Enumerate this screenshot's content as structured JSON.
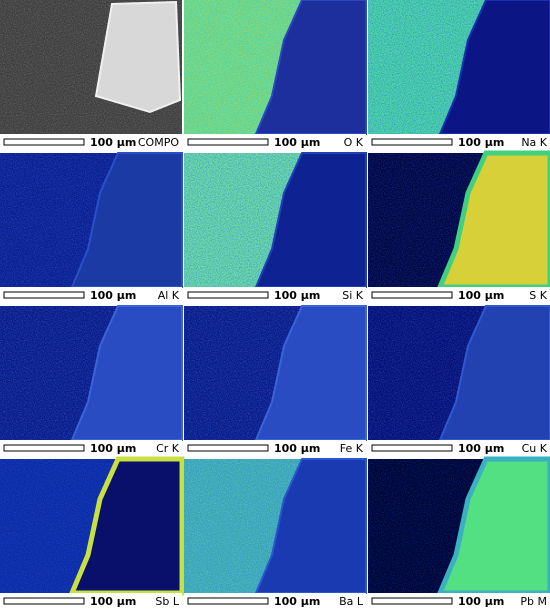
{
  "panels": [
    {
      "scale": "100 µm",
      "label": "COMPO"
    },
    {
      "scale": "100 µm",
      "label": "O K"
    },
    {
      "scale": "100 µm",
      "label": "Na K"
    },
    {
      "scale": "100 µm",
      "label": "Al K"
    },
    {
      "scale": "100 µm",
      "label": "Si K"
    },
    {
      "scale": "100 µm",
      "label": "S K"
    },
    {
      "scale": "100 µm",
      "label": "Cr K"
    },
    {
      "scale": "100 µm",
      "label": "Fe K"
    },
    {
      "scale": "100 µm",
      "label": "Cu K"
    },
    {
      "scale": "100 µm",
      "label": "Sb L"
    },
    {
      "scale": "100 µm",
      "label": "Ba L"
    },
    {
      "scale": "100 µm",
      "label": "Pb M"
    }
  ]
}
